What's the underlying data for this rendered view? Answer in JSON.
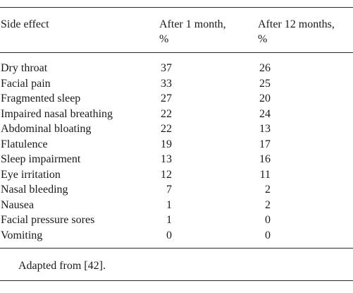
{
  "table": {
    "headers": {
      "col0": "Side effect",
      "col1_line1": "After 1 month,",
      "col1_line2": "%",
      "col2_line1": "After 12 months,",
      "col2_line2": "%"
    },
    "rows": [
      {
        "effect": "Dry throat",
        "m1": "37",
        "m12": "26"
      },
      {
        "effect": "Facial pain",
        "m1": "33",
        "m12": "25"
      },
      {
        "effect": "Fragmented sleep",
        "m1": "27",
        "m12": "20"
      },
      {
        "effect": "Impaired nasal breathing",
        "m1": "22",
        "m12": "24"
      },
      {
        "effect": "Abdominal bloating",
        "m1": "22",
        "m12": "13"
      },
      {
        "effect": "Flatulence",
        "m1": "19",
        "m12": "17"
      },
      {
        "effect": "Sleep impairment",
        "m1": "13",
        "m12": "16"
      },
      {
        "effect": "Eye irritation",
        "m1": "12",
        "m12": "11"
      },
      {
        "effect": "Nasal bleeding",
        "m1": "7",
        "m12": "2"
      },
      {
        "effect": "Nausea",
        "m1": "1",
        "m12": "2"
      },
      {
        "effect": "Facial pressure sores",
        "m1": "1",
        "m12": "0"
      },
      {
        "effect": "Vomiting",
        "m1": "0",
        "m12": "0"
      }
    ],
    "footnote": "Adapted from [42]."
  }
}
